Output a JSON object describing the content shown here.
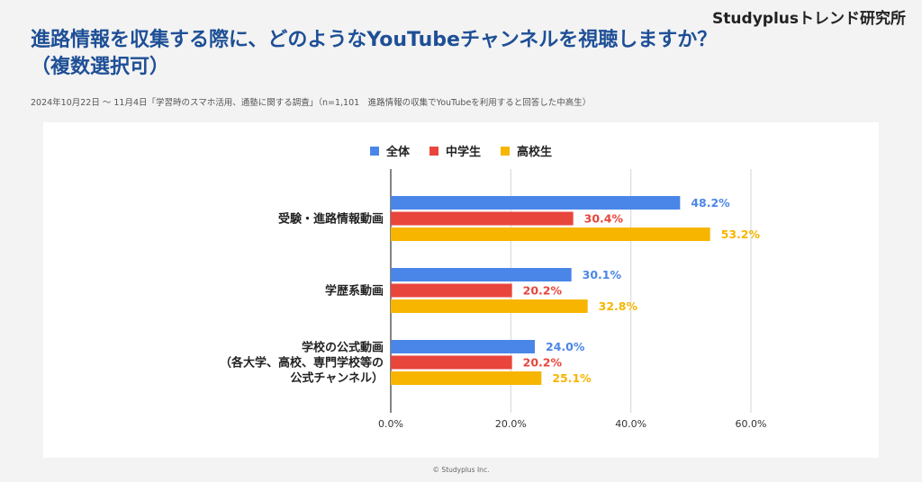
{
  "header": {
    "brand": "Studyplusトレンド研究所",
    "title": "進路情報を収集する際に、どのようなYouTubeチャンネルを視聴しますか？（複数選択可）",
    "subtitle": "2024年10月22日 〜 11月4日「学習時のスマホ活用、通塾に関する調査」（n=1,101　進路情報の収集でYouTubeを利用すると回答した中高生）"
  },
  "footer": {
    "copyright": "© Studyplus Inc."
  },
  "colors": {
    "全体": "#4a86e8",
    "中学生": "#e8453c",
    "高校生": "#f7b500"
  },
  "chart_data": {
    "type": "bar",
    "orientation": "horizontal",
    "categories": [
      [
        "受験・進路情報動画"
      ],
      [
        "学歴系動画"
      ],
      [
        "学校の公式動画",
        "（各大学、高校、専門学校等の",
        "公式チャンネル）"
      ]
    ],
    "series": [
      {
        "name": "全体",
        "values": [
          48.2,
          30.1,
          24.0
        ],
        "labels": [
          "48.2%",
          "30.1%",
          "24.0%"
        ]
      },
      {
        "name": "中学生",
        "values": [
          30.4,
          20.2,
          20.2
        ],
        "labels": [
          "30.4%",
          "20.2%",
          "20.2%"
        ]
      },
      {
        "name": "高校生",
        "values": [
          53.2,
          32.8,
          25.1
        ],
        "labels": [
          "53.2%",
          "32.8%",
          "25.1%"
        ]
      }
    ],
    "xlim": [
      0,
      60
    ],
    "xticks": [
      "0.0%",
      "20.0%",
      "40.0%",
      "60.0%"
    ],
    "grid": true,
    "legend_position": "top"
  }
}
